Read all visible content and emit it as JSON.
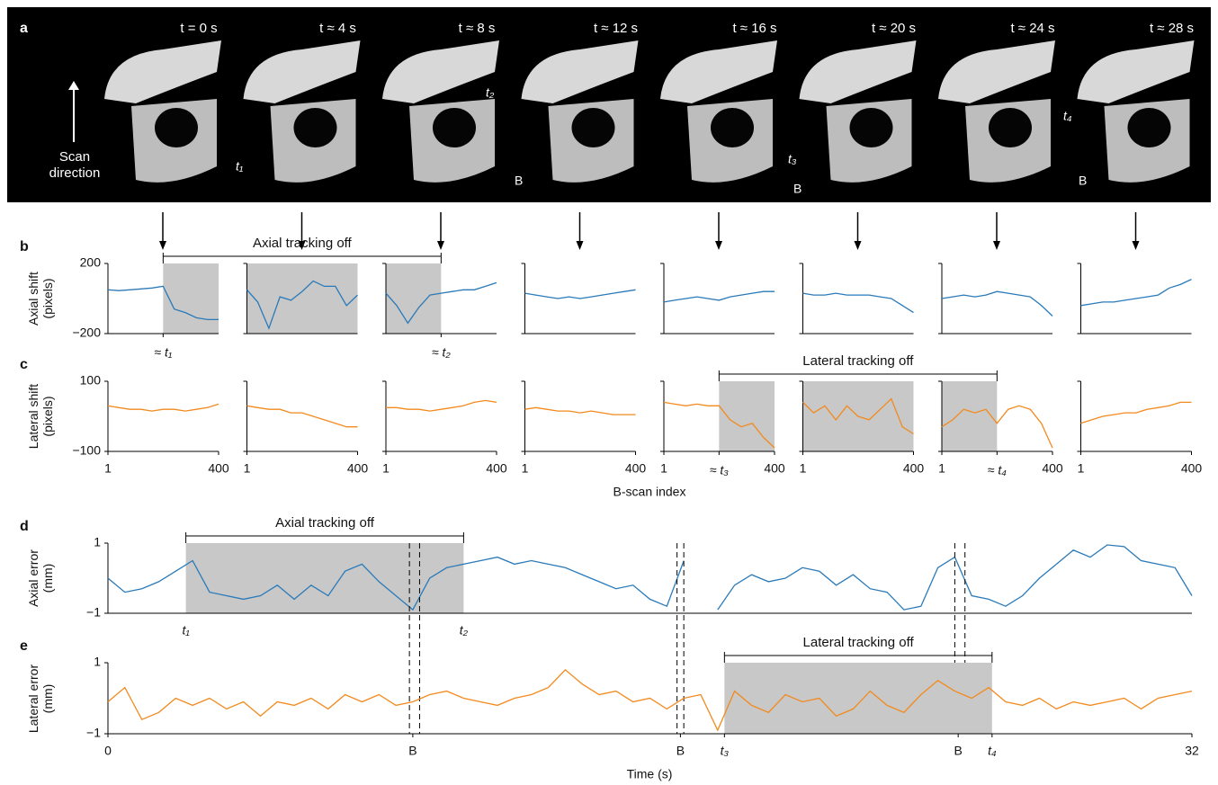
{
  "panel_a": {
    "label": "a",
    "time_labels": [
      "t = 0 s",
      "t ≈ 4 s",
      "t ≈ 8 s",
      "t ≈ 12 s",
      "t ≈ 16 s",
      "t ≈ 20 s",
      "t ≈ 24 s",
      "t ≈ 28 s"
    ],
    "scan_direction": "Scan direction",
    "markers": [
      "t₁",
      "t₂",
      "t₃",
      "t₄"
    ],
    "b_labels": [
      "B",
      "B",
      "B"
    ]
  },
  "chart_data": [
    {
      "type": "small-multiples",
      "panel_label": "b",
      "ylabel": "Axial shift (pixels)",
      "ylim": [
        -200,
        200
      ],
      "yticks": [
        {
          "value": -200,
          "label": "−200"
        },
        200
      ],
      "xlim": [
        1,
        400
      ],
      "x": [
        1,
        40,
        80,
        120,
        160,
        200,
        240,
        280,
        320,
        360,
        400
      ],
      "color": "#2a7ab9",
      "annotation": "Axial tracking off",
      "subplots": [
        {
          "values": [
            50,
            45,
            50,
            55,
            60,
            70,
            -60,
            -80,
            -110,
            -120,
            -120
          ],
          "shade": [
            200,
            400
          ],
          "marker": {
            "x": 200,
            "label": "≈ t₁"
          }
        },
        {
          "values": [
            50,
            -20,
            -170,
            10,
            -10,
            40,
            100,
            70,
            70,
            -40,
            20
          ],
          "shade": [
            1,
            400
          ]
        },
        {
          "values": [
            30,
            -40,
            -140,
            -50,
            20,
            30,
            40,
            50,
            50,
            70,
            90
          ],
          "shade": [
            1,
            200
          ],
          "marker": {
            "x": 200,
            "label": "≈ t₂"
          }
        },
        {
          "values": [
            30,
            20,
            10,
            0,
            10,
            0,
            10,
            20,
            30,
            40,
            50
          ]
        },
        {
          "values": [
            -20,
            -10,
            0,
            10,
            0,
            -10,
            10,
            20,
            30,
            40,
            40
          ]
        },
        {
          "values": [
            30,
            20,
            20,
            30,
            20,
            20,
            20,
            10,
            0,
            -40,
            -80
          ]
        },
        {
          "values": [
            0,
            10,
            20,
            10,
            20,
            40,
            30,
            20,
            10,
            -40,
            -100
          ]
        },
        {
          "values": [
            -40,
            -30,
            -20,
            -20,
            -10,
            0,
            10,
            20,
            60,
            80,
            110
          ]
        }
      ]
    },
    {
      "type": "small-multiples",
      "panel_label": "c",
      "ylabel": "Lateral shift (pixels)",
      "xlabel": "B-scan index",
      "ylim": [
        -100,
        100
      ],
      "yticks": [
        {
          "value": -100,
          "label": "−100"
        },
        100
      ],
      "xlim": [
        1,
        400
      ],
      "xticks": [
        1,
        400
      ],
      "x": [
        1,
        40,
        80,
        120,
        160,
        200,
        240,
        280,
        320,
        360,
        400
      ],
      "color": "#f28a1e",
      "annotation": "Lateral tracking off",
      "subplots": [
        {
          "values": [
            30,
            25,
            20,
            20,
            15,
            20,
            20,
            15,
            20,
            25,
            35
          ]
        },
        {
          "values": [
            30,
            25,
            20,
            20,
            10,
            10,
            0,
            -10,
            -20,
            -30,
            -30
          ]
        },
        {
          "values": [
            25,
            25,
            20,
            20,
            15,
            20,
            25,
            30,
            40,
            45,
            40
          ]
        },
        {
          "values": [
            20,
            25,
            20,
            15,
            15,
            10,
            15,
            10,
            5,
            5,
            5
          ]
        },
        {
          "values": [
            40,
            35,
            30,
            35,
            30,
            30,
            -10,
            -30,
            -20,
            -60,
            -90
          ],
          "shade": [
            200,
            400
          ],
          "marker": {
            "x": 200,
            "label": "≈ t₃"
          }
        },
        {
          "values": [
            40,
            10,
            30,
            -10,
            30,
            0,
            -10,
            20,
            50,
            -30,
            -50
          ],
          "shade": [
            1,
            400
          ]
        },
        {
          "values": [
            -30,
            -10,
            20,
            10,
            20,
            -20,
            20,
            30,
            20,
            -20,
            -90
          ],
          "shade": [
            1,
            200
          ],
          "marker": {
            "x": 200,
            "label": "≈ t₄"
          }
        },
        {
          "values": [
            -20,
            -10,
            0,
            5,
            10,
            10,
            20,
            25,
            30,
            40,
            40
          ]
        }
      ]
    },
    {
      "type": "line",
      "panel_label": "d",
      "ylabel": "Axial error (mm)",
      "xlim": [
        0,
        32
      ],
      "ylim": [
        -1,
        1
      ],
      "yticks": [
        {
          "value": -1,
          "label": "−1"
        },
        1
      ],
      "color": "#2a7ab9",
      "annotation": "Axial tracking off",
      "shade": [
        2.3,
        10.5
      ],
      "shade_labels": [
        "t₁",
        "t₂"
      ],
      "events": [
        8.9,
        9.2,
        16.8,
        17.0,
        25.0,
        25.3
      ],
      "x": [
        0,
        0.5,
        1,
        1.5,
        2,
        2.5,
        3,
        3.5,
        4,
        4.5,
        5,
        5.5,
        6,
        6.5,
        7,
        7.5,
        8,
        8.5,
        9,
        9.5,
        10,
        10.5,
        11,
        11.5,
        12,
        12.5,
        13,
        13.5,
        14,
        14.5,
        15,
        15.5,
        16,
        16.5,
        17,
        17.5,
        18,
        18.5,
        19,
        19.5,
        20,
        20.5,
        21,
        21.5,
        22,
        22.5,
        23,
        23.5,
        24,
        24.5,
        25,
        25.5,
        26,
        26.5,
        27,
        27.5,
        28,
        28.5,
        29,
        29.5,
        30,
        30.5,
        31,
        31.5,
        32
      ],
      "values": [
        0.0,
        -0.4,
        -0.3,
        -0.1,
        0.2,
        0.5,
        -0.4,
        -0.5,
        -0.6,
        -0.5,
        -0.2,
        -0.6,
        -0.2,
        -0.5,
        0.2,
        0.4,
        -0.1,
        -0.5,
        -0.9,
        0.0,
        0.3,
        0.4,
        0.5,
        0.6,
        0.4,
        0.5,
        0.4,
        0.3,
        0.1,
        -0.1,
        -0.3,
        -0.2,
        -0.6,
        -0.8,
        0.5,
        null,
        -0.9,
        -0.2,
        0.1,
        -0.1,
        0.0,
        0.3,
        0.2,
        -0.2,
        0.1,
        -0.3,
        -0.4,
        -0.9,
        -0.8,
        0.3,
        0.6,
        -0.5,
        -0.6,
        -0.8,
        -0.5,
        0.0,
        0.4,
        0.8,
        0.6,
        0.95,
        0.9,
        0.5,
        0.4,
        0.3,
        -0.5
      ]
    },
    {
      "type": "line",
      "panel_label": "e",
      "ylabel": "Lateral error (mm)",
      "xlabel": "Time (s)",
      "xlim": [
        0,
        32
      ],
      "ylim": [
        -1,
        1
      ],
      "yticks": [
        {
          "value": -1,
          "label": "−1"
        },
        1
      ],
      "color": "#f28a1e",
      "annotation": "Lateral tracking off",
      "shade": [
        18.2,
        26.1
      ],
      "xticks": [
        0,
        {
          "value": 9.0,
          "label": "B"
        },
        {
          "value": 16.9,
          "label": "B"
        },
        {
          "value": 18.2,
          "label": "t₃"
        },
        {
          "value": 25.1,
          "label": "B"
        },
        {
          "value": 26.1,
          "label": "t₄"
        },
        32
      ],
      "x": [
        0,
        0.5,
        1,
        1.5,
        2,
        2.5,
        3,
        3.5,
        4,
        4.5,
        5,
        5.5,
        6,
        6.5,
        7,
        7.5,
        8,
        8.5,
        9,
        9.5,
        10,
        10.5,
        11,
        11.5,
        12,
        12.5,
        13,
        13.5,
        14,
        14.5,
        15,
        15.5,
        16,
        16.5,
        17,
        17.5,
        18,
        18.5,
        19,
        19.5,
        20,
        20.5,
        21,
        21.5,
        22,
        22.5,
        23,
        23.5,
        24,
        24.5,
        25,
        25.5,
        26,
        26.5,
        27,
        27.5,
        28,
        28.5,
        29,
        29.5,
        30,
        30.5,
        31,
        31.5,
        32
      ],
      "values": [
        -0.1,
        0.3,
        -0.6,
        -0.4,
        0.0,
        -0.2,
        0.0,
        -0.3,
        -0.1,
        -0.5,
        -0.1,
        -0.2,
        0.0,
        -0.3,
        0.1,
        -0.1,
        0.1,
        -0.2,
        -0.1,
        0.1,
        0.2,
        0.0,
        -0.1,
        -0.2,
        0.0,
        0.1,
        0.3,
        0.8,
        0.4,
        0.1,
        0.2,
        -0.1,
        0.0,
        -0.3,
        0.0,
        0.1,
        -0.9,
        0.2,
        -0.2,
        -0.4,
        0.1,
        -0.1,
        0.0,
        -0.5,
        -0.3,
        0.2,
        -0.2,
        -0.4,
        0.1,
        0.5,
        0.2,
        0.0,
        0.3,
        -0.1,
        -0.2,
        0.0,
        -0.3,
        -0.1,
        -0.2,
        -0.1,
        0.0,
        -0.3,
        0.0,
        0.1,
        0.2
      ]
    }
  ]
}
